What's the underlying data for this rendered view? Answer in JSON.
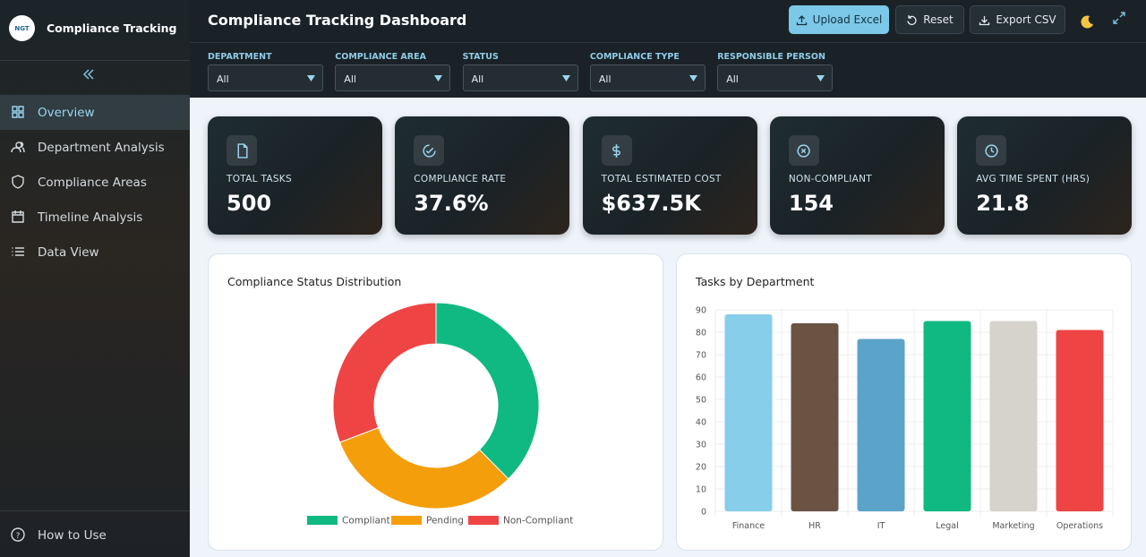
{
  "sidebar": {
    "logo_text": "NGT",
    "brand": "Compliance Tracking",
    "nav": [
      "Overview",
      "Department Analysis",
      "Compliance Areas",
      "Timeline Analysis",
      "Data View"
    ],
    "footer": "How to Use"
  },
  "header": {
    "title": "Compliance Tracking Dashboard",
    "buttons": [
      "Upload Excel",
      "Reset",
      "Export CSV"
    ]
  },
  "filters": [
    {
      "label": "DEPARTMENT",
      "value": "All"
    },
    {
      "label": "COMPLIANCE AREA",
      "value": "All"
    },
    {
      "label": "STATUS",
      "value": "All"
    },
    {
      "label": "COMPLIANCE TYPE",
      "value": "All"
    },
    {
      "label": "RESPONSIBLE PERSON",
      "value": "All"
    }
  ],
  "kpis": [
    {
      "label": "TOTAL TASKS",
      "value": "500"
    },
    {
      "label": "COMPLIANCE RATE",
      "value": "37.6%"
    },
    {
      "label": "TOTAL ESTIMATED COST",
      "value": "$637.5K"
    },
    {
      "label": "NON-COMPLIANT",
      "value": "154"
    },
    {
      "label": "AVG TIME SPENT (HRS)",
      "value": "21.8"
    }
  ],
  "chart_data": [
    {
      "type": "pie",
      "title": "Compliance Status Distribution",
      "donut": true,
      "categories": [
        "Compliant",
        "Pending",
        "Non-Compliant"
      ],
      "values": [
        188,
        158,
        154
      ],
      "colors": [
        "#10b981",
        "#f59e0b",
        "#ef4444"
      ]
    },
    {
      "type": "bar",
      "title": "Tasks by Department",
      "categories": [
        "Finance",
        "HR",
        "IT",
        "Legal",
        "Marketing",
        "Operations"
      ],
      "values": [
        88,
        84,
        77,
        85,
        85,
        81
      ],
      "colors": [
        "#87ceeb",
        "#6b5344",
        "#5ba3c9",
        "#10b981",
        "#d6d3cc",
        "#ef4444"
      ],
      "ylim": [
        0,
        90
      ],
      "yticks": [
        0,
        10,
        20,
        30,
        40,
        50,
        60,
        70,
        80,
        90
      ],
      "grid": true
    }
  ]
}
